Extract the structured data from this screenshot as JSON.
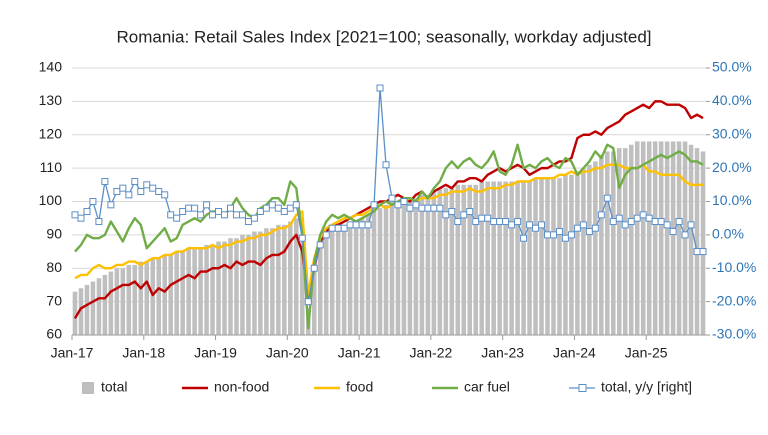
{
  "chart_data": {
    "type": "bar-line",
    "title": "Romania: Retail Sales Index [2021=100; seasonally, workday adjusted]",
    "categories": [
      "Jan-17",
      null,
      null,
      null,
      null,
      null,
      null,
      null,
      null,
      null,
      null,
      null,
      "Jan-18",
      null,
      null,
      null,
      null,
      null,
      null,
      null,
      null,
      null,
      null,
      null,
      "Jan-19",
      null,
      null,
      null,
      null,
      null,
      null,
      null,
      null,
      null,
      null,
      null,
      "Jan-20",
      null,
      null,
      null,
      null,
      null,
      null,
      null,
      null,
      null,
      null,
      null,
      "Jan-21",
      null,
      null,
      null,
      null,
      null,
      null,
      null,
      null,
      null,
      null,
      null,
      "Jan-22",
      null,
      null,
      null,
      null,
      null,
      null,
      null,
      null,
      null,
      null,
      null,
      "Jan-23",
      null,
      null,
      null,
      null,
      null,
      null,
      null,
      null,
      null,
      null,
      null,
      "Jan-24",
      null,
      null,
      null,
      null,
      null,
      null,
      null,
      null,
      null,
      null,
      null,
      "Jan-25",
      null,
      null,
      null,
      null,
      null,
      null,
      null,
      null,
      null
    ],
    "ylim": [
      60,
      140
    ],
    "yticks": [
      60,
      70,
      80,
      90,
      100,
      110,
      120,
      130,
      140
    ],
    "y2lim": [
      -30,
      50
    ],
    "y2ticks": [
      {
        "value": -30,
        "label": "-30.0%"
      },
      {
        "value": -20,
        "label": "-20.0%"
      },
      {
        "value": -10,
        "label": "-10.0%"
      },
      {
        "value": 0,
        "label": "0.0%"
      },
      {
        "value": 10,
        "label": "10.0%"
      },
      {
        "value": 20,
        "label": "20.0%"
      },
      {
        "value": 30,
        "label": "30.0%"
      },
      {
        "value": 40,
        "label": "40.0%"
      },
      {
        "value": 50,
        "label": "50.0%"
      }
    ],
    "grid": true,
    "series": [
      {
        "name": "total",
        "type": "bar",
        "color": "#bfbfbf",
        "values": [
          73,
          74,
          75,
          76,
          77,
          78,
          79,
          80,
          80,
          81,
          81,
          82,
          82,
          83,
          83,
          84,
          84,
          85,
          85,
          86,
          86,
          86,
          87,
          87,
          88,
          88,
          89,
          89,
          90,
          90,
          91,
          91,
          92,
          92,
          93,
          93,
          94,
          95,
          87,
          68,
          80,
          88,
          91,
          92,
          93,
          93,
          93,
          94,
          95,
          96,
          98,
          98,
          99,
          100,
          100,
          100,
          101,
          101,
          102,
          102,
          103,
          104,
          104,
          104,
          105,
          105,
          105,
          105,
          106,
          106,
          106,
          106,
          106,
          106,
          106,
          106,
          106,
          107,
          107,
          107,
          107,
          107,
          108,
          108,
          109,
          110,
          111,
          112,
          114,
          115,
          115,
          116,
          116,
          117,
          118,
          118,
          118,
          118,
          118,
          118,
          118,
          118,
          118,
          117,
          116,
          115
        ]
      },
      {
        "name": "non-food",
        "type": "line",
        "color": "#c00000",
        "values": [
          65,
          68,
          69,
          70,
          71,
          71,
          73,
          74,
          75,
          75,
          76,
          74,
          76,
          72,
          74,
          73,
          75,
          76,
          77,
          78,
          77,
          79,
          79,
          80,
          80,
          81,
          80,
          82,
          81,
          82,
          82,
          81,
          83,
          84,
          84,
          85,
          88,
          90,
          85,
          71,
          80,
          88,
          91,
          93,
          93,
          94,
          95,
          96,
          97,
          98,
          99,
          100,
          100,
          101,
          102,
          101,
          100,
          102,
          103,
          101,
          103,
          104,
          105,
          104,
          106,
          106,
          107,
          107,
          106,
          108,
          109,
          110,
          109,
          110,
          111,
          110,
          108,
          109,
          110,
          110,
          111,
          112,
          112,
          113,
          119,
          120,
          120,
          121,
          120,
          122,
          123,
          124,
          126,
          127,
          128,
          129,
          128,
          130,
          130,
          129,
          129,
          129,
          128,
          125,
          126,
          125
        ]
      },
      {
        "name": "food",
        "type": "line",
        "color": "#ffc000",
        "values": [
          77,
          78,
          78,
          80,
          81,
          80,
          80,
          81,
          81,
          82,
          82,
          81,
          82,
          83,
          83,
          84,
          84,
          85,
          85,
          86,
          86,
          86,
          86,
          87,
          86,
          87,
          87,
          88,
          88,
          89,
          89,
          90,
          90,
          91,
          92,
          92,
          93,
          96,
          97,
          72,
          83,
          89,
          92,
          93,
          94,
          95,
          95,
          96,
          96,
          97,
          98,
          99,
          98,
          99,
          100,
          100,
          101,
          100,
          101,
          101,
          101,
          102,
          102,
          103,
          103,
          103,
          104,
          103,
          103,
          104,
          104,
          104,
          105,
          105,
          106,
          106,
          106,
          107,
          107,
          107,
          107,
          108,
          108,
          109,
          108,
          109,
          109,
          110,
          110,
          111,
          111,
          111,
          110,
          110,
          110,
          111,
          109,
          109,
          108,
          108,
          108,
          108,
          106,
          105,
          105,
          105
        ]
      },
      {
        "name": "car fuel",
        "type": "line",
        "color": "#70ad47",
        "values": [
          85,
          87,
          90,
          89,
          89,
          90,
          94,
          91,
          88,
          92,
          95,
          93,
          86,
          88,
          90,
          92,
          88,
          89,
          93,
          94,
          95,
          94,
          96,
          97,
          97,
          96,
          98,
          101,
          98,
          96,
          95,
          98,
          99,
          101,
          101,
          99,
          106,
          104,
          90,
          62,
          82,
          90,
          94,
          96,
          95,
          96,
          95,
          94,
          95,
          96,
          97,
          99,
          100,
          99,
          100,
          101,
          101,
          100,
          103,
          101,
          104,
          106,
          110,
          112,
          110,
          112,
          113,
          111,
          110,
          112,
          115,
          109,
          108,
          111,
          117,
          110,
          111,
          110,
          112,
          113,
          111,
          110,
          113,
          112,
          108,
          110,
          112,
          115,
          113,
          117,
          116,
          104,
          108,
          110,
          110,
          111,
          112,
          113,
          114,
          113,
          114,
          115,
          114,
          112,
          112,
          111
        ]
      },
      {
        "name": "total, y/y [right]",
        "type": "line-marker",
        "axis": "y2",
        "color": "#5b8fc9",
        "values": [
          6,
          5,
          7,
          10,
          4,
          16,
          9,
          13,
          14,
          12,
          16,
          13,
          15,
          14,
          13,
          12,
          6,
          5,
          7,
          8,
          8,
          6,
          9,
          6,
          7,
          6,
          8,
          6,
          6,
          4,
          5,
          7,
          8,
          9,
          8,
          7,
          8,
          9,
          -1,
          -20,
          -10,
          -3,
          0,
          2,
          2,
          2,
          3,
          3,
          3,
          3,
          9,
          44,
          21,
          11,
          9,
          10,
          8,
          9,
          8,
          8,
          8,
          8,
          6,
          7,
          4,
          6,
          7,
          4,
          5,
          5,
          4,
          4,
          4,
          3,
          4,
          -1,
          3,
          2,
          3,
          0,
          0,
          1,
          -1,
          0,
          2,
          3,
          1,
          2,
          6,
          11,
          4,
          5,
          3,
          4,
          5,
          6,
          5,
          4,
          4,
          3,
          1,
          4,
          0,
          3,
          -5,
          -5
        ]
      }
    ]
  }
}
